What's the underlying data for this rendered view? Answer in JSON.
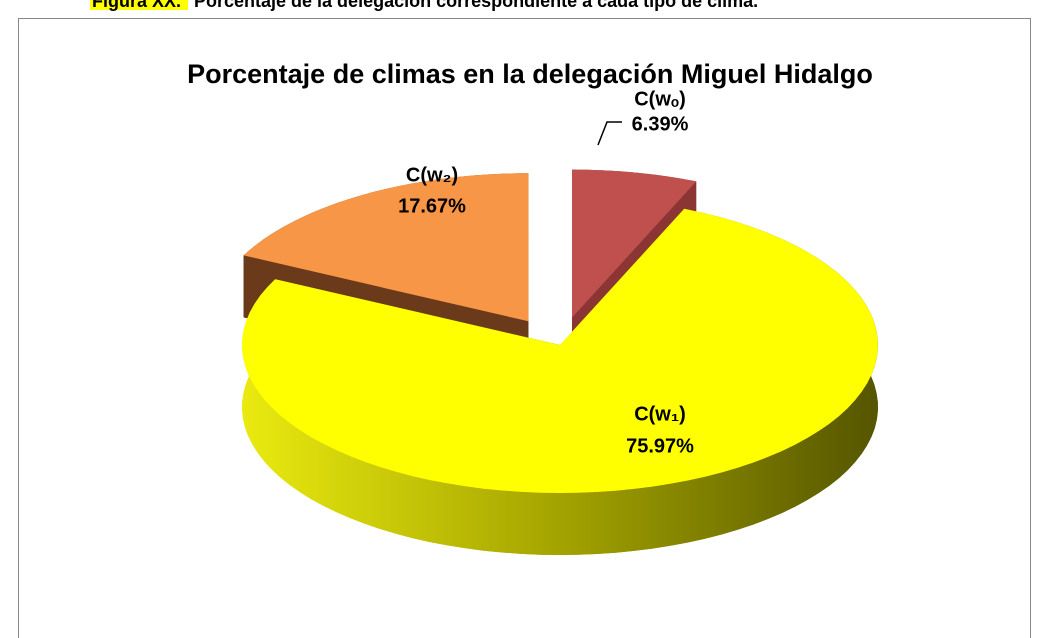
{
  "caption_label": "Figura XX.",
  "caption_text": "Porcentaje de la delegación correspondiente a cada tipo de clima.",
  "chart_data": {
    "type": "pie3d",
    "title": "Porcentaje de climas en la delegación Miguel Hidalgo",
    "categories": [
      "C(wₒ)",
      "C(w₁)",
      "C(w₂)"
    ],
    "values": [
      6.39,
      75.97,
      17.67
    ],
    "value_labels": [
      "6.39%",
      "75.97%",
      "17.67%"
    ],
    "colors": [
      "#c0504d",
      "#ffff00",
      "#f79646"
    ]
  }
}
